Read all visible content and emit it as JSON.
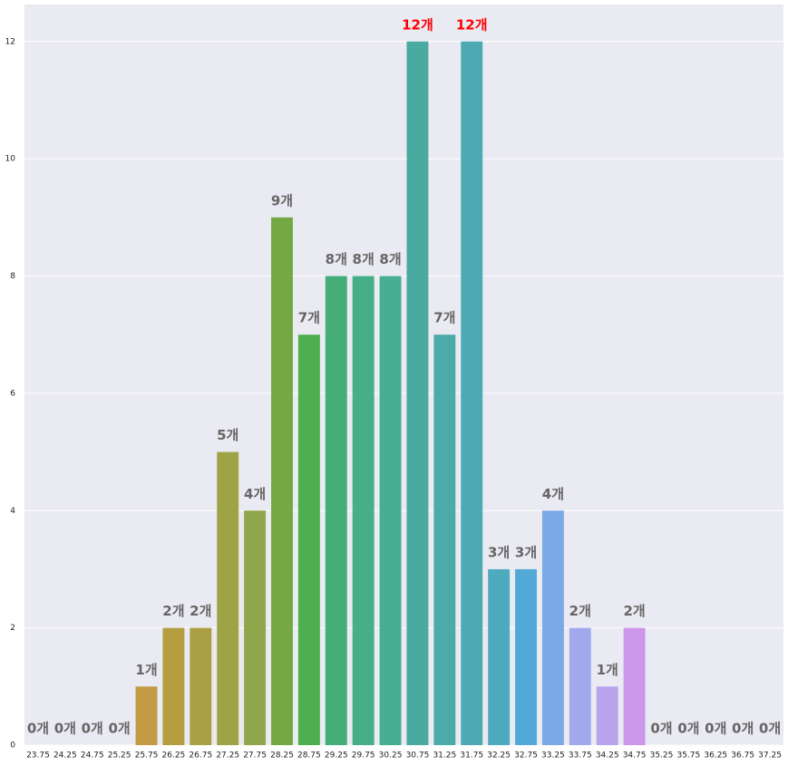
{
  "chart_data": {
    "type": "bar",
    "categories": [
      "23.75",
      "24.25",
      "24.75",
      "25.25",
      "25.75",
      "26.25",
      "26.75",
      "27.25",
      "27.75",
      "28.25",
      "28.75",
      "29.25",
      "29.75",
      "30.25",
      "30.75",
      "31.25",
      "31.75",
      "32.25",
      "32.75",
      "33.25",
      "33.75",
      "34.25",
      "34.75",
      "35.25",
      "35.75",
      "36.25",
      "36.75",
      "37.25"
    ],
    "values": [
      0,
      0,
      0,
      0,
      1,
      2,
      2,
      5,
      4,
      9,
      7,
      8,
      8,
      8,
      12,
      7,
      12,
      3,
      3,
      4,
      2,
      1,
      2,
      0,
      0,
      0,
      0,
      0
    ],
    "value_labels": [
      "0개",
      "0개",
      "0개",
      "0개",
      "1개",
      "2개",
      "2개",
      "5개",
      "4개",
      "9개",
      "7개",
      "8개",
      "8개",
      "8개",
      "12개",
      "7개",
      "12개",
      "3개",
      "3개",
      "4개",
      "2개",
      "1개",
      "2개",
      "0개",
      "0개",
      "0개",
      "0개",
      "0개"
    ],
    "colors": [
      "#e8777a",
      "#e58a5b",
      "#d99144",
      "#cf9540",
      "#c49a45",
      "#b59e40",
      "#aaa043",
      "#9ea346",
      "#90a64a",
      "#74a843",
      "#4daf50",
      "#45ae78",
      "#46ae88",
      "#47ae92",
      "#49aba0",
      "#4baba9",
      "#4daab4",
      "#4eaabf",
      "#52a8d6",
      "#7aa9e6",
      "#a1a9ec",
      "#b9a5ee",
      "#cc97ea",
      "#d98fe0",
      "#e38ad0",
      "#ea86bf",
      "#ec86ad",
      "#ed879c"
    ],
    "value_label_color": "#666666",
    "max_label_color": "#ff0000",
    "ylim": [
      0,
      12.63
    ],
    "yticks": [
      0,
      2,
      4,
      6,
      8,
      10,
      12
    ],
    "grid": true
  }
}
